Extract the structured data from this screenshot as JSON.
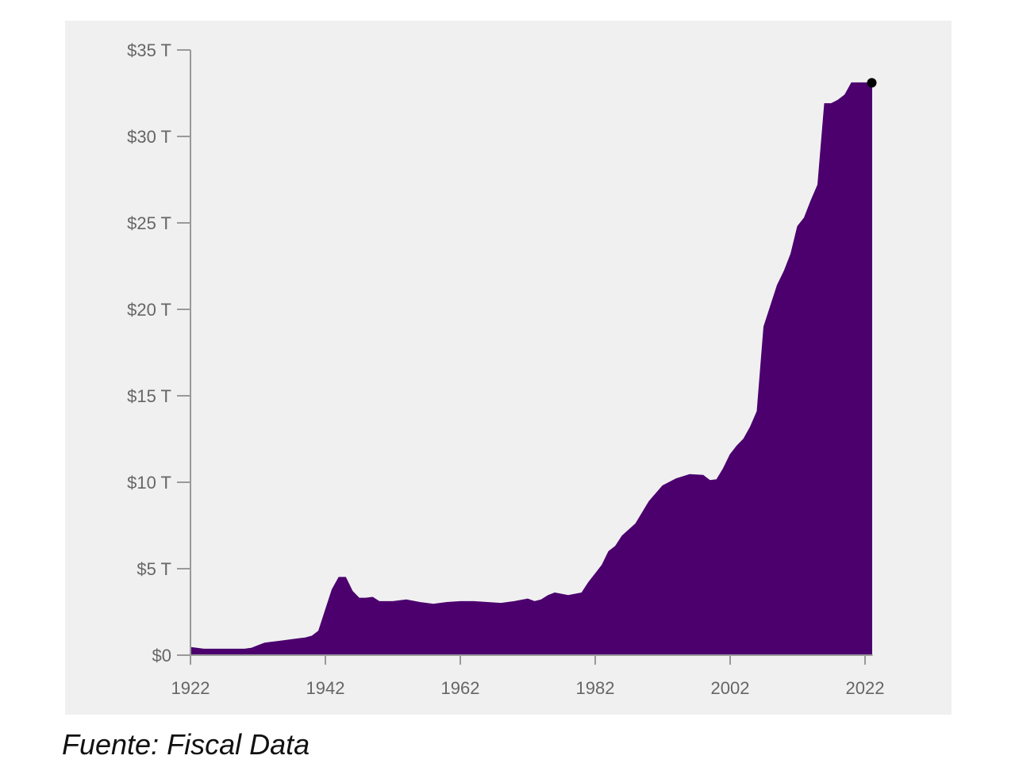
{
  "source_note": "Fuente: Fiscal Data",
  "colors": {
    "panel_bg": "#f0f0f0",
    "area_fill": "#4b006e",
    "axis": "#999999",
    "tick_text": "#666666",
    "marker": "#000000"
  },
  "chart_data": {
    "type": "area",
    "title": "",
    "xlabel": "",
    "ylabel": "",
    "xlim": [
      1922,
      2023
    ],
    "ylim": [
      0,
      35
    ],
    "x_ticks": [
      1922,
      1942,
      1962,
      1982,
      2002,
      2022
    ],
    "x_tick_labels": [
      "1922",
      "1942",
      "1962",
      "1982",
      "2002",
      "2022"
    ],
    "y_ticks": [
      0,
      5,
      10,
      15,
      20,
      25,
      30,
      35
    ],
    "y_tick_labels": [
      "$0",
      "$5 T",
      "$10 T",
      "$15 T",
      "$20 T",
      "$25 T",
      "$30 T",
      "$35 T"
    ],
    "grid": false,
    "legend": "none",
    "series": [
      {
        "x": [
          1922,
          1924,
          1926,
          1928,
          1930,
          1931,
          1932,
          1933,
          1934,
          1935,
          1936,
          1937,
          1938,
          1939,
          1940,
          1941,
          1942,
          1943,
          1944,
          1945,
          1946,
          1947,
          1948,
          1949,
          1950,
          1952,
          1954,
          1956,
          1958,
          1960,
          1962,
          1964,
          1966,
          1968,
          1970,
          1972,
          1973,
          1974,
          1975,
          1976,
          1978,
          1980,
          1981,
          1982,
          1983,
          1984,
          1985,
          1986,
          1988,
          1990,
          1992,
          1994,
          1996,
          1998,
          1999,
          2000,
          2001,
          2002,
          2003,
          2004,
          2005,
          2006,
          2007,
          2008,
          2009,
          2010,
          2011,
          2012,
          2013,
          2014,
          2015,
          2016,
          2017,
          2018,
          2019,
          2020,
          2021,
          2022,
          2023
        ],
        "y": [
          0.45,
          0.35,
          0.35,
          0.35,
          0.35,
          0.4,
          0.55,
          0.7,
          0.75,
          0.8,
          0.85,
          0.9,
          0.95,
          1.0,
          1.1,
          1.4,
          2.6,
          3.8,
          4.5,
          4.5,
          3.7,
          3.3,
          3.3,
          3.35,
          3.1,
          3.1,
          3.2,
          3.05,
          2.95,
          3.05,
          3.1,
          3.1,
          3.05,
          3.0,
          3.1,
          3.25,
          3.1,
          3.2,
          3.45,
          3.6,
          3.45,
          3.6,
          4.2,
          4.7,
          5.2,
          6.0,
          6.3,
          6.9,
          7.6,
          8.9,
          9.8,
          10.2,
          10.45,
          10.4,
          10.1,
          10.15,
          10.8,
          11.6,
          12.1,
          12.5,
          13.2,
          14.1,
          19.0,
          20.2,
          21.4,
          22.2,
          23.2,
          24.8,
          25.3,
          26.3,
          27.2,
          31.9,
          31.9,
          32.1,
          32.4,
          33.1,
          33.1,
          33.1,
          33.1
        ]
      }
    ],
    "highlight_point": {
      "x": 2023,
      "y": 33.1
    }
  }
}
